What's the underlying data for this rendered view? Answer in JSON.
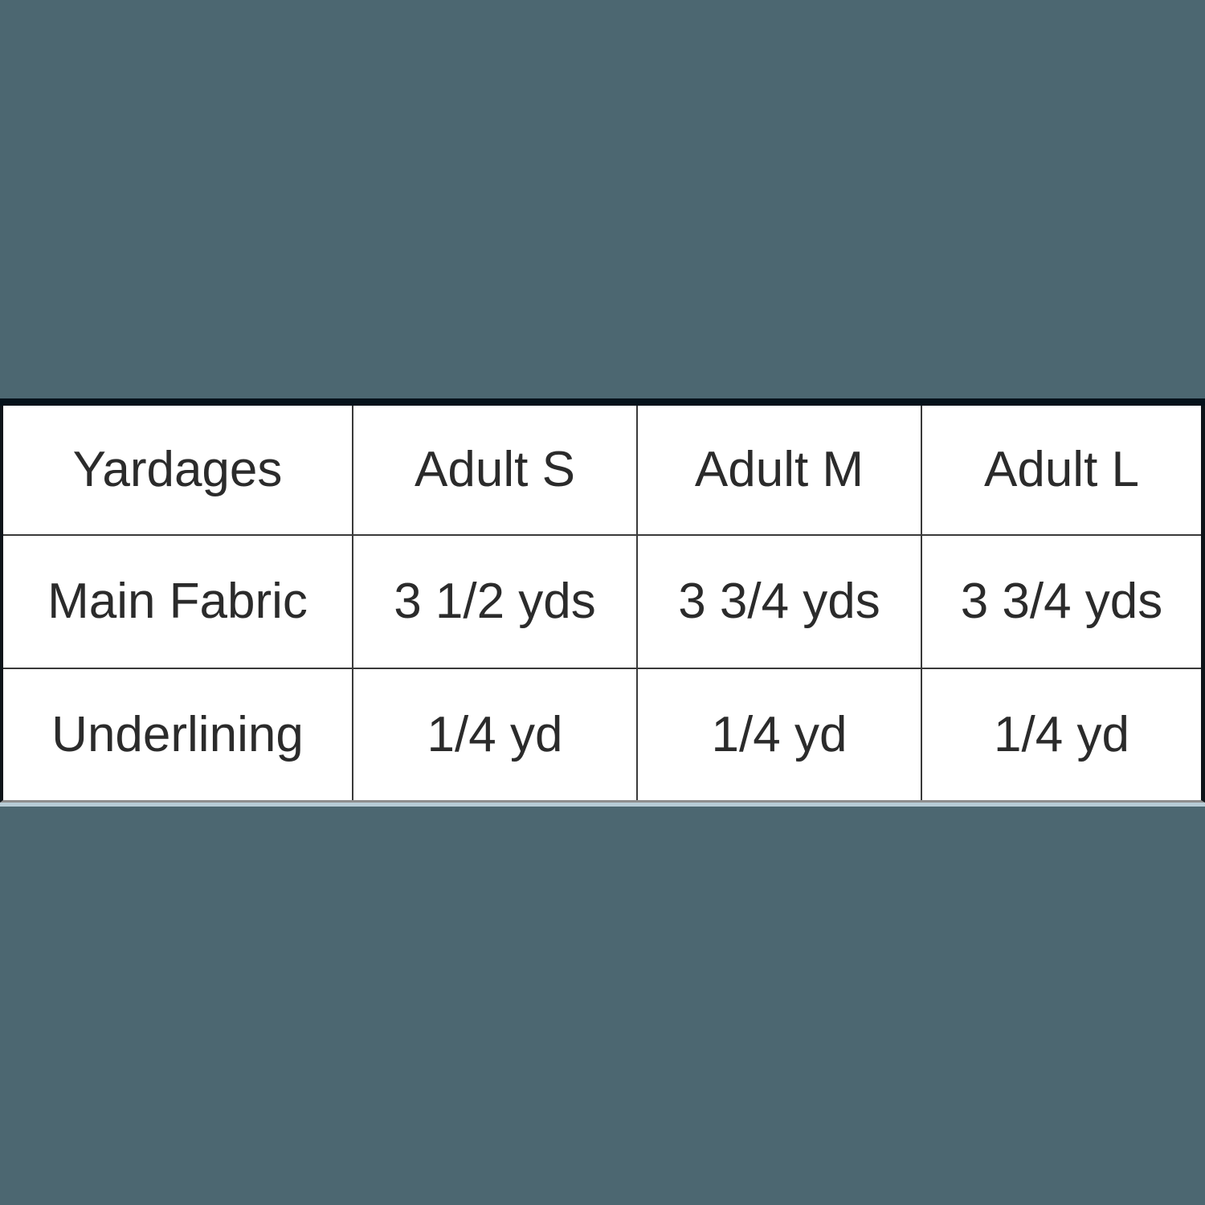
{
  "colors": {
    "background": "#4c6771",
    "top_bar": "#05121b",
    "side_border": "#0e1419",
    "grid_line": "#3a3a3a",
    "bottom_gray_edge": "#8e8e8e",
    "bottom_light_edge": "#b7ccd6",
    "cell_background": "#ffffff",
    "text": "#2b2b2b"
  },
  "table": {
    "columns": [
      "Yardages",
      "Adult S",
      "Adult M",
      "Adult L"
    ],
    "rows": [
      {
        "label": "Main Fabric",
        "values": [
          "3 1/2 yds",
          "3 3/4 yds",
          "3 3/4 yds"
        ]
      },
      {
        "label": "Underlining",
        "values": [
          "1/4 yd",
          "1/4 yd",
          "1/4 yd"
        ]
      }
    ]
  }
}
